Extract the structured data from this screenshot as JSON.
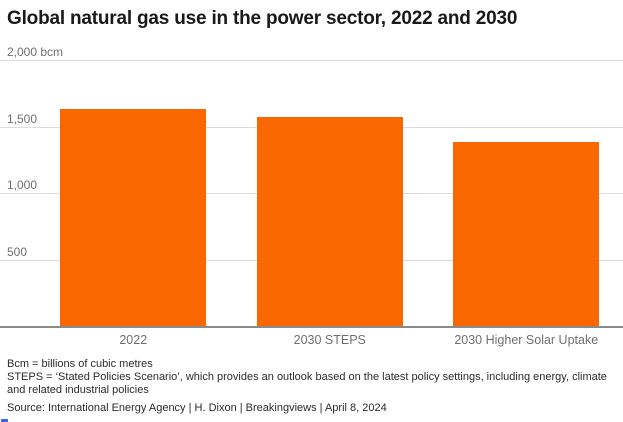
{
  "title": "Global natural gas use in the power sector, 2022 and 2030",
  "chart_data": {
    "type": "bar",
    "title": "Global natural gas use in the power sector, 2022 and 2030",
    "categories": [
      "2022",
      "2030 STEPS",
      "2030 Higher Solar Uptake"
    ],
    "values": [
      1630,
      1570,
      1380
    ],
    "unit": "bcm",
    "xlabel": "",
    "ylabel": "bcm",
    "ylim": [
      0,
      2000
    ],
    "grid": true,
    "legend": "none",
    "y_ticks": [
      {
        "value": 2000,
        "label": "2,000 bcm"
      },
      {
        "value": 1500,
        "label": "1,500"
      },
      {
        "value": 1000,
        "label": "1,000"
      },
      {
        "value": 500,
        "label": "500"
      }
    ],
    "bar_color": "#f96800"
  },
  "footnotes": [
    "Bcm = billions of cubic metres",
    "STEPS = ‘Stated Policies Scenario’, which provides an outlook based on the latest policy settings, including energy, climate and related industrial policies",
    "Source: International Energy Agency | H. Dixon | Breakingviews | April 8, 2024"
  ],
  "colors": {
    "bar": "#f96800",
    "title_text": "#191919",
    "gridline": "#dcdcdc",
    "axis_line": "#8a8a8a",
    "tick_text": "#6f6f6f",
    "footnote_text": "#2b2b2b",
    "corner_mark": "#4263eb",
    "background": "#ffffff"
  }
}
